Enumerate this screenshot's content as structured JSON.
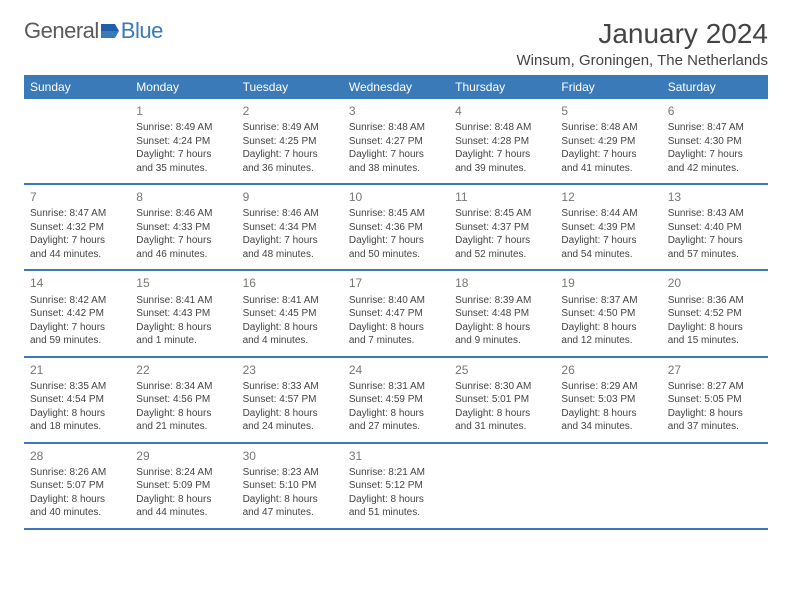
{
  "logo": {
    "text1": "General",
    "text2": "Blue"
  },
  "title": "January 2024",
  "location": "Winsum, Groningen, The Netherlands",
  "colors": {
    "header_bg": "#3a7ab8",
    "text": "#444444",
    "muted": "#777777",
    "bg": "#ffffff"
  },
  "day_headers": [
    "Sunday",
    "Monday",
    "Tuesday",
    "Wednesday",
    "Thursday",
    "Friday",
    "Saturday"
  ],
  "weeks": [
    [
      {
        "n": "",
        "sunrise": "",
        "sunset": "",
        "daylight": ""
      },
      {
        "n": "1",
        "sunrise": "Sunrise: 8:49 AM",
        "sunset": "Sunset: 4:24 PM",
        "daylight": "Daylight: 7 hours and 35 minutes."
      },
      {
        "n": "2",
        "sunrise": "Sunrise: 8:49 AM",
        "sunset": "Sunset: 4:25 PM",
        "daylight": "Daylight: 7 hours and 36 minutes."
      },
      {
        "n": "3",
        "sunrise": "Sunrise: 8:48 AM",
        "sunset": "Sunset: 4:27 PM",
        "daylight": "Daylight: 7 hours and 38 minutes."
      },
      {
        "n": "4",
        "sunrise": "Sunrise: 8:48 AM",
        "sunset": "Sunset: 4:28 PM",
        "daylight": "Daylight: 7 hours and 39 minutes."
      },
      {
        "n": "5",
        "sunrise": "Sunrise: 8:48 AM",
        "sunset": "Sunset: 4:29 PM",
        "daylight": "Daylight: 7 hours and 41 minutes."
      },
      {
        "n": "6",
        "sunrise": "Sunrise: 8:47 AM",
        "sunset": "Sunset: 4:30 PM",
        "daylight": "Daylight: 7 hours and 42 minutes."
      }
    ],
    [
      {
        "n": "7",
        "sunrise": "Sunrise: 8:47 AM",
        "sunset": "Sunset: 4:32 PM",
        "daylight": "Daylight: 7 hours and 44 minutes."
      },
      {
        "n": "8",
        "sunrise": "Sunrise: 8:46 AM",
        "sunset": "Sunset: 4:33 PM",
        "daylight": "Daylight: 7 hours and 46 minutes."
      },
      {
        "n": "9",
        "sunrise": "Sunrise: 8:46 AM",
        "sunset": "Sunset: 4:34 PM",
        "daylight": "Daylight: 7 hours and 48 minutes."
      },
      {
        "n": "10",
        "sunrise": "Sunrise: 8:45 AM",
        "sunset": "Sunset: 4:36 PM",
        "daylight": "Daylight: 7 hours and 50 minutes."
      },
      {
        "n": "11",
        "sunrise": "Sunrise: 8:45 AM",
        "sunset": "Sunset: 4:37 PM",
        "daylight": "Daylight: 7 hours and 52 minutes."
      },
      {
        "n": "12",
        "sunrise": "Sunrise: 8:44 AM",
        "sunset": "Sunset: 4:39 PM",
        "daylight": "Daylight: 7 hours and 54 minutes."
      },
      {
        "n": "13",
        "sunrise": "Sunrise: 8:43 AM",
        "sunset": "Sunset: 4:40 PM",
        "daylight": "Daylight: 7 hours and 57 minutes."
      }
    ],
    [
      {
        "n": "14",
        "sunrise": "Sunrise: 8:42 AM",
        "sunset": "Sunset: 4:42 PM",
        "daylight": "Daylight: 7 hours and 59 minutes."
      },
      {
        "n": "15",
        "sunrise": "Sunrise: 8:41 AM",
        "sunset": "Sunset: 4:43 PM",
        "daylight": "Daylight: 8 hours and 1 minute."
      },
      {
        "n": "16",
        "sunrise": "Sunrise: 8:41 AM",
        "sunset": "Sunset: 4:45 PM",
        "daylight": "Daylight: 8 hours and 4 minutes."
      },
      {
        "n": "17",
        "sunrise": "Sunrise: 8:40 AM",
        "sunset": "Sunset: 4:47 PM",
        "daylight": "Daylight: 8 hours and 7 minutes."
      },
      {
        "n": "18",
        "sunrise": "Sunrise: 8:39 AM",
        "sunset": "Sunset: 4:48 PM",
        "daylight": "Daylight: 8 hours and 9 minutes."
      },
      {
        "n": "19",
        "sunrise": "Sunrise: 8:37 AM",
        "sunset": "Sunset: 4:50 PM",
        "daylight": "Daylight: 8 hours and 12 minutes."
      },
      {
        "n": "20",
        "sunrise": "Sunrise: 8:36 AM",
        "sunset": "Sunset: 4:52 PM",
        "daylight": "Daylight: 8 hours and 15 minutes."
      }
    ],
    [
      {
        "n": "21",
        "sunrise": "Sunrise: 8:35 AM",
        "sunset": "Sunset: 4:54 PM",
        "daylight": "Daylight: 8 hours and 18 minutes."
      },
      {
        "n": "22",
        "sunrise": "Sunrise: 8:34 AM",
        "sunset": "Sunset: 4:56 PM",
        "daylight": "Daylight: 8 hours and 21 minutes."
      },
      {
        "n": "23",
        "sunrise": "Sunrise: 8:33 AM",
        "sunset": "Sunset: 4:57 PM",
        "daylight": "Daylight: 8 hours and 24 minutes."
      },
      {
        "n": "24",
        "sunrise": "Sunrise: 8:31 AM",
        "sunset": "Sunset: 4:59 PM",
        "daylight": "Daylight: 8 hours and 27 minutes."
      },
      {
        "n": "25",
        "sunrise": "Sunrise: 8:30 AM",
        "sunset": "Sunset: 5:01 PM",
        "daylight": "Daylight: 8 hours and 31 minutes."
      },
      {
        "n": "26",
        "sunrise": "Sunrise: 8:29 AM",
        "sunset": "Sunset: 5:03 PM",
        "daylight": "Daylight: 8 hours and 34 minutes."
      },
      {
        "n": "27",
        "sunrise": "Sunrise: 8:27 AM",
        "sunset": "Sunset: 5:05 PM",
        "daylight": "Daylight: 8 hours and 37 minutes."
      }
    ],
    [
      {
        "n": "28",
        "sunrise": "Sunrise: 8:26 AM",
        "sunset": "Sunset: 5:07 PM",
        "daylight": "Daylight: 8 hours and 40 minutes."
      },
      {
        "n": "29",
        "sunrise": "Sunrise: 8:24 AM",
        "sunset": "Sunset: 5:09 PM",
        "daylight": "Daylight: 8 hours and 44 minutes."
      },
      {
        "n": "30",
        "sunrise": "Sunrise: 8:23 AM",
        "sunset": "Sunset: 5:10 PM",
        "daylight": "Daylight: 8 hours and 47 minutes."
      },
      {
        "n": "31",
        "sunrise": "Sunrise: 8:21 AM",
        "sunset": "Sunset: 5:12 PM",
        "daylight": "Daylight: 8 hours and 51 minutes."
      },
      {
        "n": "",
        "sunrise": "",
        "sunset": "",
        "daylight": ""
      },
      {
        "n": "",
        "sunrise": "",
        "sunset": "",
        "daylight": ""
      },
      {
        "n": "",
        "sunrise": "",
        "sunset": "",
        "daylight": ""
      }
    ]
  ]
}
